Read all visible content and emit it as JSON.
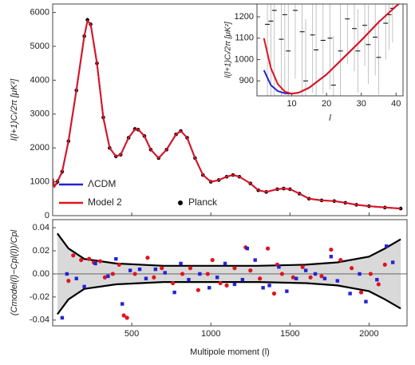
{
  "chart_data": [
    {
      "type": "line",
      "ylabel": "l(l+1)Cₗ/2π [μK²]",
      "xlim": [
        0,
        2240
      ],
      "ylim": [
        0,
        6250
      ],
      "yticks": [
        0,
        1000,
        2000,
        3000,
        4000,
        5000,
        6000
      ],
      "x": [
        2,
        10,
        30,
        60,
        100,
        150,
        200,
        220,
        240,
        280,
        320,
        360,
        400,
        430,
        480,
        520,
        540,
        580,
        620,
        670,
        720,
        780,
        810,
        850,
        900,
        950,
        1000,
        1050,
        1100,
        1140,
        1180,
        1250,
        1300,
        1350,
        1420,
        1460,
        1500,
        1560,
        1620,
        1700,
        1780,
        1850,
        1920,
        2000,
        2100,
        2200
      ],
      "series": [
        {
          "name": "ΛCDM",
          "color": "#2323d6",
          "values": [
            950,
            850,
            1000,
            1300,
            2200,
            3700,
            5300,
            5750,
            5650,
            4500,
            2900,
            2000,
            1750,
            1800,
            2300,
            2550,
            2550,
            2350,
            1950,
            1700,
            1950,
            2400,
            2500,
            2300,
            1700,
            1200,
            1000,
            1050,
            1150,
            1200,
            1150,
            950,
            750,
            700,
            780,
            800,
            780,
            650,
            500,
            450,
            430,
            380,
            320,
            280,
            240,
            210
          ]
        },
        {
          "name": "Model 2",
          "color": "#e0141e",
          "values": [
            1100,
            850,
            1000,
            1300,
            2200,
            3700,
            5300,
            5750,
            5650,
            4500,
            2900,
            2000,
            1750,
            1800,
            2300,
            2550,
            2550,
            2350,
            1950,
            1700,
            1950,
            2400,
            2500,
            2300,
            1700,
            1200,
            1000,
            1050,
            1150,
            1200,
            1150,
            950,
            750,
            700,
            780,
            800,
            780,
            650,
            500,
            450,
            430,
            380,
            320,
            280,
            240,
            210
          ]
        }
      ],
      "points": {
        "name": "Planck",
        "color": "#000000",
        "x": [
          30,
          60,
          100,
          150,
          200,
          220,
          240,
          280,
          320,
          360,
          400,
          430,
          480,
          520,
          540,
          580,
          620,
          670,
          720,
          780,
          810,
          850,
          900,
          950,
          1000,
          1050,
          1100,
          1140,
          1180,
          1250,
          1300,
          1350,
          1420,
          1460,
          1500,
          1560,
          1620,
          1700,
          1780,
          1850,
          1920,
          2000,
          2100,
          2200
        ],
        "values": [
          1000,
          1300,
          2200,
          3700,
          5300,
          5780,
          5650,
          4500,
          2900,
          2000,
          1750,
          1800,
          2300,
          2560,
          2540,
          2350,
          1950,
          1700,
          1950,
          2400,
          2500,
          2300,
          1700,
          1200,
          1000,
          1050,
          1150,
          1200,
          1150,
          950,
          750,
          700,
          780,
          800,
          780,
          650,
          500,
          450,
          430,
          380,
          320,
          280,
          240,
          210
        ],
        "errors": [
          80,
          80,
          70,
          70,
          60,
          60,
          60,
          50,
          40,
          40,
          30,
          30,
          30,
          30,
          30,
          30,
          30,
          30,
          30,
          30,
          30,
          30,
          25,
          25,
          25,
          25,
          25,
          25,
          25,
          20,
          20,
          20,
          20,
          20,
          20,
          20,
          20,
          20,
          20,
          20,
          20,
          20,
          20,
          20
        ]
      }
    },
    {
      "type": "line",
      "xlabel": "l",
      "ylabel": "l(l+1)Cₗ/2π [μK²]",
      "xlim": [
        0,
        42
      ],
      "xticks": [
        10,
        20,
        30,
        40
      ],
      "ylim": [
        830,
        1260
      ],
      "yticks": [
        900,
        1000,
        1100,
        1200
      ],
      "x": [
        2,
        4,
        6,
        8,
        10,
        12,
        15,
        20,
        25,
        30,
        35,
        40,
        41
      ],
      "series": [
        {
          "color": "#2323d6",
          "values": [
            950,
            880,
            852,
            842,
            840,
            845,
            868,
            930,
            1010,
            1090,
            1175,
            1250,
            1262
          ]
        },
        {
          "color": "#e0141e",
          "values": [
            1100,
            960,
            885,
            850,
            840,
            845,
            868,
            930,
            1010,
            1090,
            1175,
            1250,
            1262
          ]
        }
      ],
      "points": {
        "color": "#000000",
        "x": [
          3,
          4,
          5,
          7,
          8,
          9,
          11,
          13,
          14,
          16,
          17,
          19,
          21,
          22,
          24,
          26,
          28,
          29,
          31,
          32,
          34,
          35,
          37,
          38,
          39
        ],
        "values": [
          1165,
          1180,
          1230,
          1095,
          1210,
          1040,
          1230,
          1130,
          900,
          1115,
          1045,
          1090,
          1100,
          880,
          1040,
          1190,
          1145,
          1040,
          1160,
          1070,
          1105,
          1010,
          1170,
          1210,
          1240
        ],
        "errors": [
          500,
          450,
          420,
          380,
          360,
          340,
          320,
          300,
          290,
          270,
          260,
          250,
          240,
          230,
          220,
          210,
          200,
          195,
          190,
          185,
          180,
          175,
          170,
          165,
          160
        ]
      }
    },
    {
      "type": "scatter",
      "xlabel": "Multipole moment (l)",
      "ylabel": "(Cmodel(l)−Cpl(l))/Cpl",
      "xlim": [
        0,
        2240
      ],
      "xticks": [
        500,
        1000,
        1500,
        2000
      ],
      "ylim": [
        -0.045,
        0.047
      ],
      "yticks": [
        0.04,
        0.02,
        {
          "value": 0,
          "label": "0.00"
        },
        -0.02,
        -0.04
      ],
      "band": {
        "x": [
          30,
          100,
          200,
          400,
          700,
          1000,
          1300,
          1600,
          1800,
          2000,
          2100,
          2200
        ],
        "upper": [
          0.035,
          0.022,
          0.013,
          0.009,
          0.007,
          0.007,
          0.007,
          0.008,
          0.01,
          0.015,
          0.022,
          0.03
        ],
        "lower": [
          -0.035,
          -0.022,
          -0.013,
          -0.009,
          -0.007,
          -0.007,
          -0.007,
          -0.008,
          -0.01,
          -0.015,
          -0.022,
          -0.03
        ]
      },
      "series": [
        {
          "color": "#e0141e",
          "x": [
            100,
            130,
            180,
            230,
            260,
            300,
            330,
            380,
            420,
            450,
            470,
            520,
            600,
            640,
            690,
            760,
            820,
            870,
            920,
            980,
            1010,
            1060,
            1100,
            1150,
            1220,
            1250,
            1310,
            1360,
            1400,
            1420,
            1450,
            1520,
            1580,
            1630,
            1700,
            1760,
            1820,
            1890,
            1950,
            2010,
            2060,
            2100
          ],
          "values": [
            -0.006,
            0.016,
            0.012,
            0.013,
            0.01,
            0.011,
            -0.003,
            0.0,
            0.008,
            -0.036,
            -0.038,
            0.0,
            0.014,
            -0.003,
            0.005,
            -0.008,
            0.0,
            0.005,
            -0.014,
            0.0,
            0.012,
            -0.008,
            -0.01,
            0.005,
            0.023,
            0.003,
            -0.004,
            0.022,
            -0.017,
            0.008,
            0.0,
            -0.003,
            0.006,
            -0.003,
            -0.002,
            0.021,
            0.012,
            0.005,
            -0.016,
            0.0,
            -0.009,
            0.008
          ]
        },
        {
          "color": "#2323d6",
          "x": [
            60,
            90,
            150,
            200,
            270,
            350,
            400,
            440,
            490,
            550,
            590,
            650,
            710,
            770,
            810,
            860,
            930,
            990,
            1040,
            1090,
            1150,
            1200,
            1230,
            1280,
            1330,
            1370,
            1430,
            1480,
            1540,
            1600,
            1660,
            1720,
            1760,
            1800,
            1880,
            1940,
            1980,
            2050,
            2110,
            2150
          ],
          "values": [
            -0.038,
            0.0,
            -0.004,
            -0.011,
            0.009,
            -0.002,
            0.013,
            -0.026,
            0.003,
            0.004,
            -0.004,
            0.004,
            0.001,
            -0.016,
            0.009,
            -0.005,
            0.0,
            -0.012,
            -0.003,
            0.009,
            -0.009,
            -0.005,
            0.022,
            0.012,
            -0.012,
            -0.01,
            0.006,
            -0.015,
            -0.004,
            0.003,
            0.0,
            -0.004,
            0.015,
            -0.006,
            -0.017,
            0.0,
            -0.024,
            -0.005,
            0.024,
            0.01
          ]
        }
      ]
    }
  ]
}
